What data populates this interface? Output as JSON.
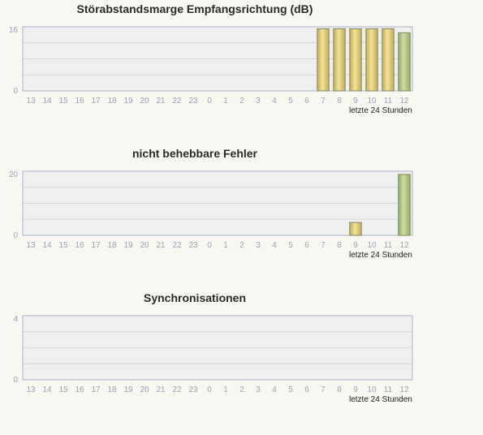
{
  "chart_data": [
    {
      "type": "bar",
      "title": "Störabstandsmarge Empfangsrichtung (dB)",
      "categories": [
        "13",
        "14",
        "15",
        "16",
        "17",
        "18",
        "19",
        "20",
        "21",
        "22",
        "23",
        "0",
        "1",
        "2",
        "3",
        "4",
        "5",
        "6",
        "7",
        "8",
        "9",
        "10",
        "11",
        "12"
      ],
      "values": [
        null,
        null,
        null,
        null,
        null,
        null,
        null,
        null,
        null,
        null,
        null,
        null,
        null,
        null,
        null,
        null,
        null,
        null,
        15.5,
        15.5,
        15.5,
        15.5,
        15.5,
        14.5
      ],
      "ylim": [
        0,
        16
      ],
      "yticks": [
        "0",
        "16"
      ],
      "footer": "letzte 24 Stunden",
      "grid": true
    },
    {
      "type": "bar",
      "title": "nicht behebbare Fehler",
      "categories": [
        "13",
        "14",
        "15",
        "16",
        "17",
        "18",
        "19",
        "20",
        "21",
        "22",
        "23",
        "0",
        "1",
        "2",
        "3",
        "4",
        "5",
        "6",
        "7",
        "8",
        "9",
        "10",
        "11",
        "12"
      ],
      "values": [
        null,
        null,
        null,
        null,
        null,
        null,
        null,
        null,
        null,
        null,
        null,
        null,
        null,
        null,
        null,
        null,
        null,
        null,
        null,
        null,
        4,
        null,
        null,
        19
      ],
      "ylim": [
        0,
        20
      ],
      "yticks": [
        "0",
        "20"
      ],
      "footer": "letzte 24 Stunden",
      "grid": true
    },
    {
      "type": "bar",
      "title": "Synchronisationen",
      "categories": [
        "13",
        "14",
        "15",
        "16",
        "17",
        "18",
        "19",
        "20",
        "21",
        "22",
        "23",
        "0",
        "1",
        "2",
        "3",
        "4",
        "5",
        "6",
        "7",
        "8",
        "9",
        "10",
        "11",
        "12"
      ],
      "values": [
        null,
        null,
        null,
        null,
        null,
        null,
        null,
        null,
        null,
        null,
        null,
        null,
        null,
        null,
        null,
        null,
        null,
        null,
        null,
        null,
        null,
        null,
        null,
        null
      ],
      "ylim": [
        0,
        4
      ],
      "yticks": [
        "0",
        "4"
      ],
      "footer": "letzte 24 Stunden",
      "grid": true
    }
  ],
  "colors": {
    "bar_gold": "#e6d27a",
    "bar_green_last": "#b9cc8c",
    "plot_background": "#efefef"
  }
}
